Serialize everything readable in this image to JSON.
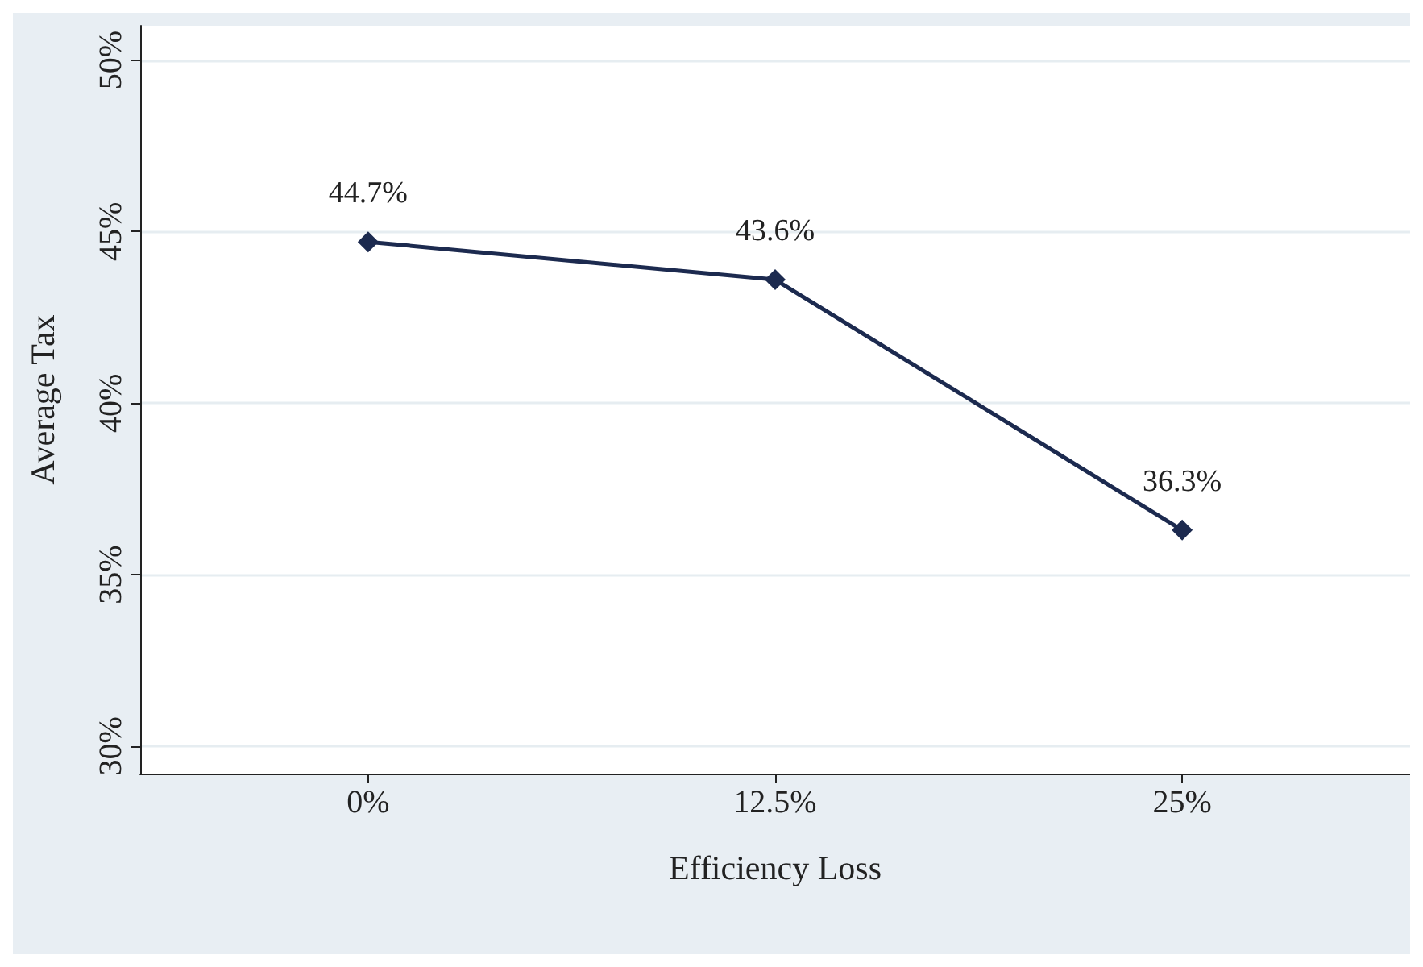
{
  "chart_data": {
    "type": "line",
    "xlabel": "Efficiency Loss",
    "ylabel": "Average Tax",
    "x": [
      0,
      12.5,
      25
    ],
    "series": [
      {
        "color": "#1c2a4f",
        "values": [
          44.7,
          43.6,
          36.3
        ],
        "value_labels": [
          "44.7%",
          "43.6%",
          "36.3%"
        ]
      }
    ],
    "xlim": [
      -7,
      32
    ],
    "xticks": [
      {
        "value": 0,
        "label": "0%"
      },
      {
        "value": 12.5,
        "label": "12.5%"
      },
      {
        "value": 25,
        "label": "25%"
      }
    ],
    "ylim": [
      29.2,
      51
    ],
    "yticks": [
      {
        "value": 30,
        "label": "30%"
      },
      {
        "value": 35,
        "label": "35%"
      },
      {
        "value": 40,
        "label": "40%"
      },
      {
        "value": 45,
        "label": "45%"
      },
      {
        "value": 50,
        "label": "50%"
      }
    ],
    "grid": "y",
    "marker": "diamond",
    "line_style": "solid"
  }
}
